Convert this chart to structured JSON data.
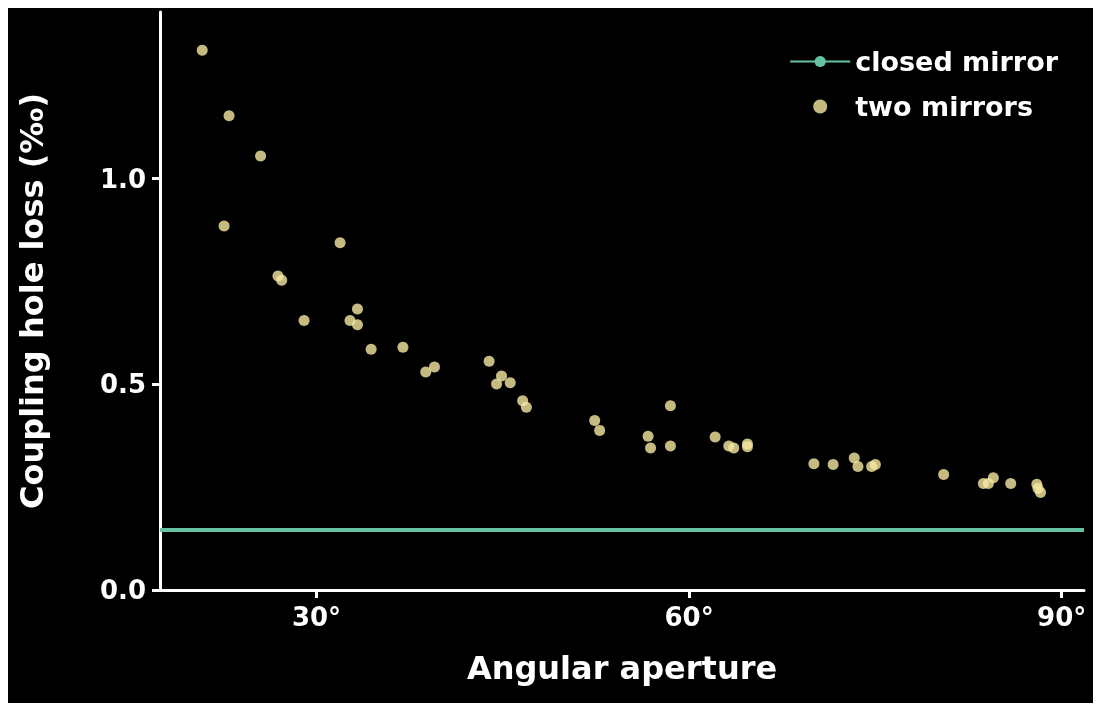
{
  "chart_data": {
    "type": "scatter",
    "xlabel": "Angular aperture",
    "ylabel": "Coupling hole loss (‰)",
    "xlim": [
      17.4,
      91.8
    ],
    "ylim": [
      0,
      1.405
    ],
    "xticks": [
      {
        "value": 30,
        "label": "30°"
      },
      {
        "value": 60,
        "label": "60°"
      },
      {
        "value": 90,
        "label": "90°"
      }
    ],
    "yticks": [
      {
        "value": 0,
        "label": "0.0"
      },
      {
        "value": 0.5,
        "label": "0.5"
      },
      {
        "value": 1,
        "label": "1.0"
      }
    ],
    "grid": false,
    "legend": "top right",
    "series": [
      {
        "name": "closed mirror",
        "type": "line",
        "color": "#66c2a5",
        "marker": "none",
        "line_style": "solid",
        "x": [
          17.4,
          91.8
        ],
        "values": [
          0.146,
          0.146
        ]
      },
      {
        "name": "two mirrors",
        "color": "#f6e8a0",
        "marker": "circle",
        "x": [
          20.8,
          22.96,
          22.56,
          25.5,
          26.9,
          27.2,
          29.0,
          31.9,
          32.7,
          33.3,
          33.3,
          34.4,
          36.96,
          38.8,
          39.5,
          43.9,
          44.5,
          44.9,
          45.6,
          46.6,
          46.9,
          52.4,
          52.8,
          56.7,
          56.9,
          58.5,
          58.5,
          62.1,
          63.2,
          63.6,
          64.7,
          64.7,
          70.05,
          71.6,
          73.3,
          73.6,
          74.7,
          75.0,
          80.5,
          83.7,
          84.1,
          84.5,
          85.9,
          88.0,
          88.1,
          88.3
        ],
        "values": [
          1.312,
          1.153,
          0.885,
          1.055,
          0.763,
          0.753,
          0.655,
          0.844,
          0.655,
          0.683,
          0.645,
          0.585,
          0.59,
          0.53,
          0.542,
          0.556,
          0.501,
          0.52,
          0.504,
          0.46,
          0.444,
          0.412,
          0.388,
          0.374,
          0.345,
          0.448,
          0.35,
          0.372,
          0.35,
          0.345,
          0.355,
          0.348,
          0.307,
          0.305,
          0.321,
          0.3,
          0.3,
          0.305,
          0.281,
          0.259,
          0.259,
          0.273,
          0.259,
          0.257,
          0.247,
          0.237
        ]
      }
    ]
  }
}
